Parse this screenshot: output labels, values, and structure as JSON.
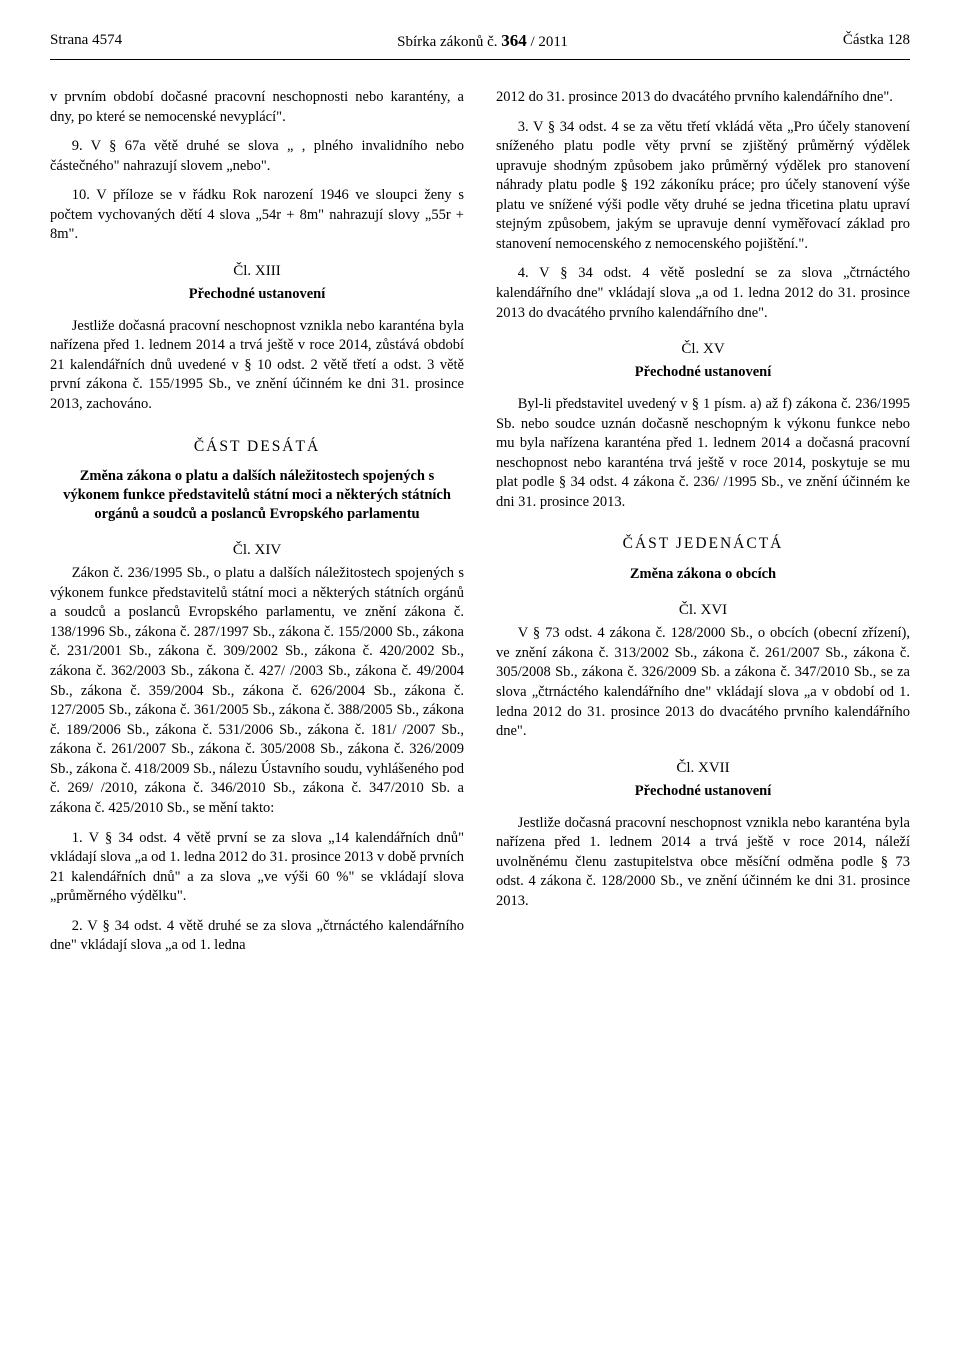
{
  "header": {
    "left": "Strana 4574",
    "center_prefix": "Sbírka zákonů č. ",
    "center_bold": "364",
    "center_suffix": " / 2011",
    "right": "Částka 128"
  },
  "col1": {
    "p1": "v prvním období dočasné pracovní neschopnosti nebo karantény, a dny, po které se nemocenské nevyplácí\".",
    "p2": "9. V § 67a větě druhé se slova „ , plného invalidního nebo částečného\" nahrazují slovem „nebo\".",
    "p3": "10. V příloze se v řádku Rok narození 1946 ve sloupci ženy s počtem vychovaných dětí 4 slova „54r + 8m\" nahrazují slovy „55r + 8m\".",
    "art13": "Čl. XIII",
    "art13_sub": "Přechodné ustanovení",
    "p4": "Jestliže dočasná pracovní neschopnost vznikla nebo karanténa byla nařízena před 1. lednem 2014 a trvá ještě v roce 2014, zůstává období 21 kalendářních dnů uvedené v § 10 odst. 2 větě třetí a odst. 3 větě první zákona č. 155/1995 Sb., ve znění účinném ke dni 31. prosince 2013, zachováno.",
    "part10": "ČÁST DESÁTÁ",
    "part10_sub": "Změna zákona o platu a dalších náležitostech spojených s výkonem funkce představitelů státní moci a některých státních orgánů a soudců a poslanců Evropského parlamentu",
    "art14": "Čl. XIV",
    "p5": "Zákon č. 236/1995 Sb., o platu a dalších náležitostech spojených s výkonem funkce představitelů státní moci a některých státních orgánů a soudců a poslanců Evropského parlamentu, ve znění zákona č. 138/1996 Sb., zákona č. 287/1997 Sb., zákona č. 155/2000 Sb., zákona č. 231/2001 Sb., zákona č. 309/2002 Sb., zákona č. 420/2002 Sb., zákona č. 362/2003 Sb., zákona č. 427/ /2003 Sb., zákona č. 49/2004 Sb., zákona č. 359/2004 Sb., zákona č. 626/2004 Sb., zákona č. 127/2005 Sb., zákona č. 361/2005 Sb., zákona č. 388/2005 Sb., zákona č. 189/2006 Sb., zákona č. 531/2006 Sb., zákona č. 181/ /2007 Sb., zákona č. 261/2007 Sb., zákona č. 305/2008 Sb., zákona č. 326/2009 Sb., zákona č. 418/2009 Sb., nálezu Ústavního soudu, vyhlášeného pod č. 269/ /2010, zákona č. 346/2010 Sb., zákona č. 347/2010 Sb. a zákona č. 425/2010 Sb., se mění takto:",
    "p6": "1. V § 34 odst. 4 větě první se za slova „14 kalendářních dnů\" vkládají slova „a od 1. ledna 2012 do 31. prosince 2013 v době prvních 21 kalendářních dnů\" a za slova „ve výši 60 %\" se vkládají slova „průměrného výdělku\".",
    "p7": "2. V § 34 odst. 4 větě druhé se za slova „čtrnáctého kalendářního dne\" vkládají slova „a od 1. ledna"
  },
  "col2": {
    "p1": "2012 do 31. prosince 2013 do dvacátého prvního kalendářního dne\".",
    "p2": "3. V § 34 odst. 4 se za větu třetí vkládá věta „Pro účely stanovení sníženého platu podle věty první se zjištěný průměrný výdělek upravuje shodným způsobem jako průměrný výdělek pro stanovení náhrady platu podle § 192 zákoníku práce; pro účely stanovení výše platu ve snížené výši podle věty druhé se jedna třicetina platu upraví stejným způsobem, jakým se upravuje denní vyměřovací základ pro stanovení nemocenského z nemocenského pojištění.\".",
    "p3": "4. V § 34 odst. 4 větě poslední se za slova „čtrnáctého kalendářního dne\" vkládají slova „a od 1. ledna 2012 do 31. prosince 2013 do dvacátého prvního kalendářního dne\".",
    "art15": "Čl. XV",
    "art15_sub": "Přechodné ustanovení",
    "p4": "Byl-li představitel uvedený v § 1 písm. a) až f) zákona č. 236/1995 Sb. nebo soudce uznán dočasně neschopným k výkonu funkce nebo mu byla nařízena karanténa před 1. lednem 2014 a dočasná pracovní neschopnost nebo karanténa trvá ještě v roce 2014, poskytuje se mu plat podle § 34 odst. 4 zákona č. 236/ /1995 Sb., ve znění účinném ke dni 31. prosince 2013.",
    "part11": "ČÁST JEDENÁCTÁ",
    "part11_sub": "Změna zákona o obcích",
    "art16": "Čl. XVI",
    "p5": "V § 73 odst. 4 zákona č. 128/2000 Sb., o obcích (obecní zřízení), ve znění zákona č. 313/2002 Sb., zákona č. 261/2007 Sb., zákona č. 305/2008 Sb., zákona č. 326/2009 Sb. a zákona č. 347/2010 Sb., se za slova „čtrnáctého kalendářního dne\" vkládají slova „a v období od 1. ledna 2012 do 31. prosince 2013 do dvacátého prvního kalendářního dne\".",
    "art17": "Čl. XVII",
    "art17_sub": "Přechodné ustanovení",
    "p6": "Jestliže dočasná pracovní neschopnost vznikla nebo karanténa byla nařízena před 1. lednem 2014 a trvá ještě v roce 2014, náleží uvolněnému členu zastupitelstva obce měsíční odměna podle § 73 odst. 4 zákona č. 128/2000 Sb., ve znění účinném ke dni 31. prosince 2013."
  }
}
